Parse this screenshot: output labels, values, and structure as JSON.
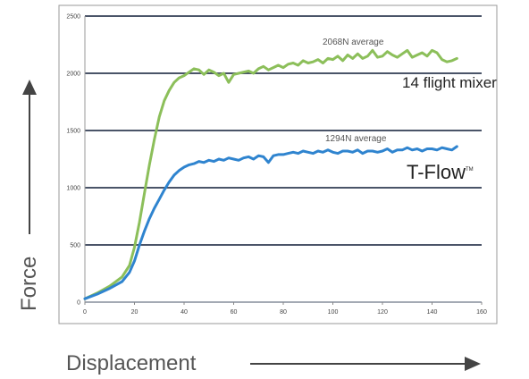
{
  "chart_data": {
    "type": "line",
    "title": "",
    "xlabel": "Displacement",
    "ylabel": "Force",
    "xlim": [
      0,
      160
    ],
    "ylim": [
      0,
      2500
    ],
    "x_ticks": [
      "0",
      "20",
      "40",
      "60",
      "80",
      "100",
      "120",
      "140",
      "160"
    ],
    "y_ticks": [
      "0",
      "500",
      "1000",
      "1500",
      "2000",
      "2500"
    ],
    "grid": "horizontal",
    "legend": "inline labels at right",
    "series": [
      {
        "name": "14 flight mixer",
        "color": "#8cbf5a",
        "average_label": "2068N average",
        "x": [
          0,
          5,
          10,
          15,
          18,
          20,
          22,
          24,
          26,
          28,
          30,
          32,
          34,
          36,
          38,
          40,
          42,
          44,
          46,
          48,
          50,
          52,
          54,
          56,
          58,
          60,
          62,
          64,
          66,
          68,
          70,
          72,
          74,
          76,
          78,
          80,
          82,
          84,
          86,
          88,
          90,
          92,
          94,
          96,
          98,
          100,
          102,
          104,
          106,
          108,
          110,
          112,
          114,
          116,
          118,
          120,
          122,
          124,
          126,
          128,
          130,
          132,
          134,
          136,
          138,
          140,
          142,
          144,
          146,
          148,
          150
        ],
        "y": [
          30,
          80,
          140,
          220,
          320,
          480,
          700,
          950,
          1200,
          1420,
          1620,
          1760,
          1850,
          1920,
          1960,
          1980,
          2010,
          2040,
          2030,
          1990,
          2030,
          2010,
          1980,
          2000,
          1920,
          1990,
          2000,
          2010,
          2020,
          2000,
          2040,
          2060,
          2030,
          2050,
          2070,
          2050,
          2080,
          2090,
          2070,
          2110,
          2090,
          2100,
          2120,
          2090,
          2130,
          2120,
          2150,
          2110,
          2160,
          2130,
          2170,
          2130,
          2150,
          2200,
          2140,
          2150,
          2190,
          2160,
          2140,
          2170,
          2200,
          2140,
          2160,
          2180,
          2150,
          2200,
          2180,
          2120,
          2100,
          2110,
          2130
        ]
      },
      {
        "name": "T-Flow™",
        "color": "#2f84cf",
        "average_label": "1294N average",
        "x": [
          0,
          5,
          10,
          15,
          18,
          20,
          22,
          24,
          26,
          28,
          30,
          32,
          34,
          36,
          38,
          40,
          42,
          44,
          46,
          48,
          50,
          52,
          54,
          56,
          58,
          60,
          62,
          64,
          66,
          68,
          70,
          72,
          74,
          76,
          78,
          80,
          82,
          84,
          86,
          88,
          90,
          92,
          94,
          96,
          98,
          100,
          102,
          104,
          106,
          108,
          110,
          112,
          114,
          116,
          118,
          120,
          122,
          124,
          126,
          128,
          130,
          132,
          134,
          136,
          138,
          140,
          142,
          144,
          146,
          148,
          150
        ],
        "y": [
          30,
          70,
          120,
          180,
          260,
          360,
          500,
          620,
          730,
          820,
          900,
          980,
          1050,
          1110,
          1150,
          1180,
          1200,
          1210,
          1230,
          1220,
          1240,
          1230,
          1250,
          1240,
          1260,
          1250,
          1240,
          1260,
          1270,
          1250,
          1280,
          1270,
          1220,
          1280,
          1290,
          1290,
          1300,
          1310,
          1300,
          1320,
          1310,
          1300,
          1320,
          1310,
          1330,
          1310,
          1300,
          1320,
          1320,
          1310,
          1330,
          1300,
          1320,
          1320,
          1310,
          1320,
          1340,
          1310,
          1330,
          1330,
          1350,
          1330,
          1340,
          1320,
          1340,
          1340,
          1330,
          1350,
          1340,
          1330,
          1360
        ]
      }
    ]
  },
  "labels": {
    "mixer_series": "14 flight mixer",
    "tflow_text": "T-Flow",
    "tflow_tm": "TM",
    "mixer_average": "2068N average",
    "tflow_average": "1294N average"
  },
  "axes": {
    "x_word": "Displacement",
    "y_word": "Force"
  },
  "colors": {
    "grid": "#4a5468",
    "axis_arrow": "#444444",
    "frame": "#8a8a8a"
  }
}
